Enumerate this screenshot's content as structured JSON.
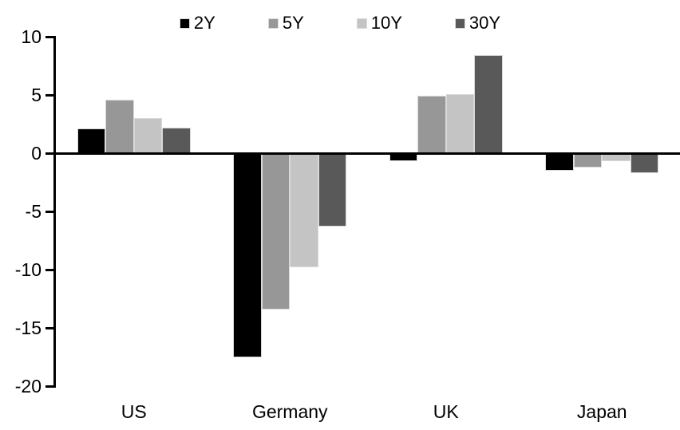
{
  "chart_data": {
    "type": "bar",
    "title": "",
    "xlabel": "",
    "ylabel": "",
    "categories": [
      "US",
      "Germany",
      "UK",
      "Japan"
    ],
    "series": [
      {
        "name": "2Y",
        "color": "#000000",
        "values": [
          2.1,
          -17.5,
          -0.7,
          -1.5
        ]
      },
      {
        "name": "5Y",
        "color": "#979797",
        "values": [
          4.6,
          -13.4,
          4.9,
          -1.2
        ]
      },
      {
        "name": "10Y",
        "color": "#c4c4c4",
        "values": [
          3.0,
          -9.8,
          5.1,
          -0.7
        ]
      },
      {
        "name": "30Y",
        "color": "#595959",
        "values": [
          2.2,
          -6.3,
          8.4,
          -1.7
        ]
      }
    ],
    "ylim": [
      -20,
      10
    ],
    "y_ticks": [
      10,
      5,
      0,
      -5,
      -10,
      -15,
      -20
    ],
    "grid": false,
    "legend_position": "top",
    "axis_color": "#000000",
    "bar_border_color": "#d9d9d9"
  }
}
